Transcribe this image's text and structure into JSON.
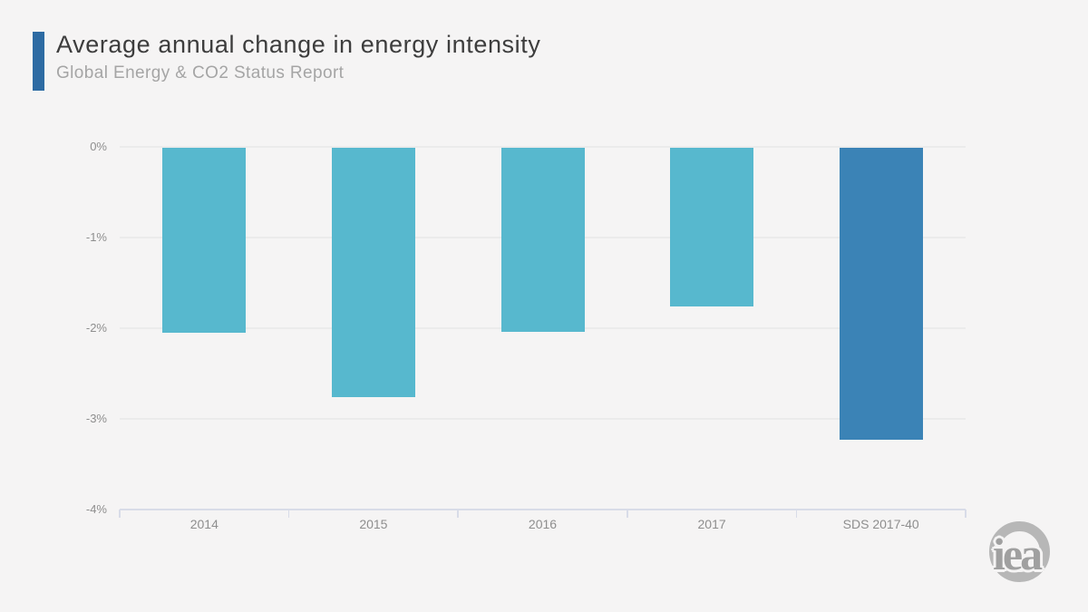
{
  "header": {
    "title": "Average annual change in energy intensity",
    "subtitle": "Global Energy & CO2 Status Report"
  },
  "logo": {
    "text": "iea"
  },
  "colors": {
    "background": "#f5f4f4",
    "accent_bar": "#2d6ba3",
    "bar_default": "#57b8ce",
    "bar_sds": "#3b83b6",
    "gridline": "#ebebeb",
    "axis_line": "#d8dce8",
    "title_text": "#3d3d3d",
    "subtitle_text": "#a5a5a5",
    "axis_text": "#8e8e8e",
    "logo_gray": "#b7b7b7",
    "logo_text": "#a0a0a0"
  },
  "chart_data": {
    "type": "bar",
    "title": "Average annual change in energy intensity",
    "subtitle": "Global Energy & CO2 Status Report",
    "categories": [
      "2014",
      "2015",
      "2016",
      "2017",
      "SDS 2017-40"
    ],
    "values": [
      -2.05,
      -2.76,
      -2.04,
      -1.76,
      -3.23
    ],
    "bar_colors": [
      "#57b8ce",
      "#57b8ce",
      "#57b8ce",
      "#57b8ce",
      "#3b83b6"
    ],
    "xlabel": "",
    "ylabel": "",
    "ylim": [
      -4,
      0
    ],
    "yticks": [
      {
        "value": 0,
        "label": "0%"
      },
      {
        "value": -1,
        "label": "-1%"
      },
      {
        "value": -2,
        "label": "-2%"
      },
      {
        "value": -3,
        "label": "-3%"
      },
      {
        "value": -4,
        "label": "-4%"
      }
    ],
    "grid": true,
    "legend": false
  }
}
